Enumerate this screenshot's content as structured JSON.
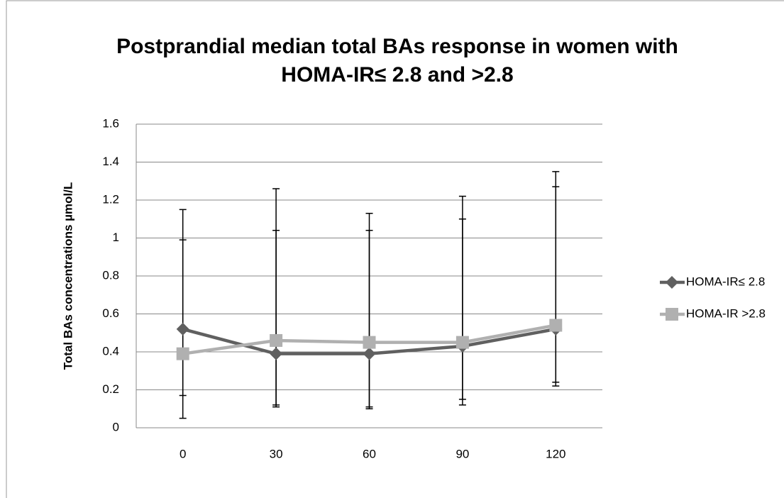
{
  "chart_data": {
    "type": "line",
    "title": [
      "Postprandial median total BAs response in women with",
      "HOMA-IR≤ 2.8 and >2.8"
    ],
    "y_label": "Total BAs concentrations µmol/L",
    "categories": [
      "0",
      "30",
      "60",
      "90",
      "120"
    ],
    "series": [
      {
        "name": "HOMA-IR≤ 2.8",
        "color": "#606060",
        "marker": "diamond",
        "values": [
          0.52,
          0.39,
          0.39,
          0.43,
          0.52
        ],
        "err_low": [
          0.17,
          0.12,
          0.11,
          0.15,
          0.24
        ],
        "err_high": [
          1.15,
          1.26,
          1.13,
          1.22,
          1.35
        ]
      },
      {
        "name": "HOMA-IR >2.8",
        "color": "#b0b0b0",
        "marker": "square",
        "values": [
          0.39,
          0.46,
          0.45,
          0.45,
          0.54
        ],
        "err_low": [
          0.05,
          0.11,
          0.1,
          0.12,
          0.22
        ],
        "err_high": [
          0.99,
          1.04,
          1.04,
          1.1,
          1.27
        ]
      }
    ],
    "ylim": [
      0,
      1.6
    ],
    "yticks": [
      0,
      0.2,
      0.4,
      0.6,
      0.8,
      1,
      1.2,
      1.4,
      1.6
    ],
    "grid": true,
    "legend": "right"
  }
}
